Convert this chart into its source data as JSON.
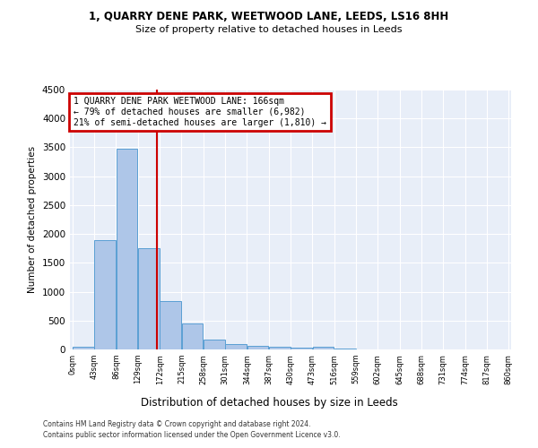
{
  "title1": "1, QUARRY DENE PARK, WEETWOOD LANE, LEEDS, LS16 8HH",
  "title2": "Size of property relative to detached houses in Leeds",
  "xlabel": "Distribution of detached houses by size in Leeds",
  "ylabel": "Number of detached properties",
  "bin_edges": [
    0,
    43,
    86,
    129,
    172,
    215,
    258,
    301,
    344,
    387,
    430,
    473,
    516,
    559,
    602,
    645,
    688,
    731,
    774,
    817,
    860
  ],
  "bar_heights": [
    50,
    1900,
    3480,
    1750,
    840,
    450,
    165,
    100,
    60,
    40,
    30,
    40,
    10,
    5,
    3,
    2,
    1,
    1,
    1,
    0
  ],
  "bar_color": "#aec6e8",
  "bar_edge_color": "#5a9fd4",
  "vline_x": 166,
  "vline_color": "#cc0000",
  "annotation_text": "1 QUARRY DENE PARK WEETWOOD LANE: 166sqm\n← 79% of detached houses are smaller (6,982)\n21% of semi-detached houses are larger (1,810) →",
  "annotation_box_color": "#cc0000",
  "ylim": [
    0,
    4500
  ],
  "yticks": [
    0,
    500,
    1000,
    1500,
    2000,
    2500,
    3000,
    3500,
    4000,
    4500
  ],
  "bg_color": "#e8eef8",
  "grid_color": "#ffffff",
  "footer1": "Contains HM Land Registry data © Crown copyright and database right 2024.",
  "footer2": "Contains public sector information licensed under the Open Government Licence v3.0."
}
